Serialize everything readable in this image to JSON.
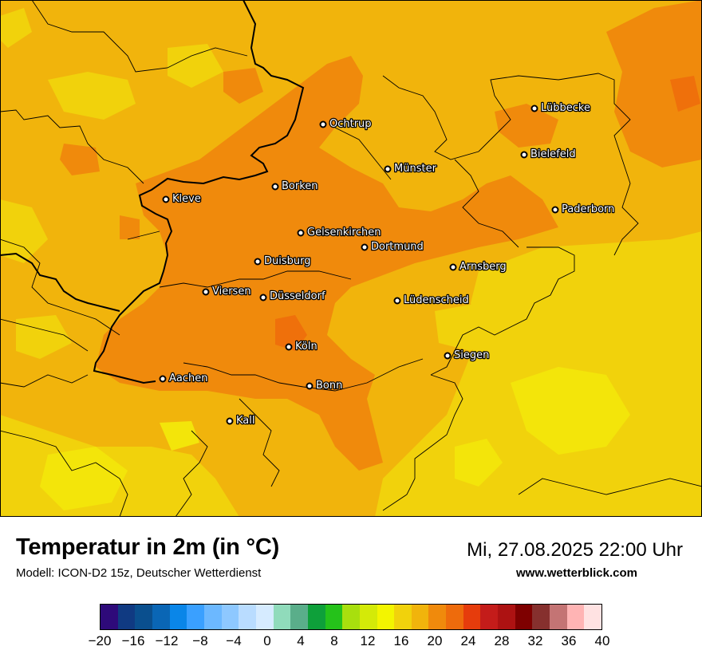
{
  "footer": {
    "title": "Temperatur in 2m (in °C)",
    "model": "Modell: ICON-D2 15z, Deutscher Wetterdienst",
    "datetime": "Mi, 27.08.2025 22:00 Uhr",
    "website": "www.wetterblick.com"
  },
  "legend": {
    "colors": [
      "#2e0a7a",
      "#103a82",
      "#0a4f8e",
      "#0a66b5",
      "#0a86e8",
      "#3aa0ff",
      "#6cb8ff",
      "#8ec8ff",
      "#b9dcff",
      "#d6ebff",
      "#90dbbb",
      "#5aae8a",
      "#0ea03a",
      "#25c21a",
      "#a8df0e",
      "#d4ea08",
      "#f3f500",
      "#f1d20c",
      "#f1b40c",
      "#f08a0c",
      "#ee6b0c",
      "#e63c0c",
      "#c41c1a",
      "#ad1212",
      "#7e0000",
      "#86302e",
      "#c47474",
      "#ffb4b4",
      "#ffe2e2"
    ],
    "ticks": [
      "−20",
      "−16",
      "−12",
      "−8",
      "−4",
      "0",
      "4",
      "8",
      "12",
      "16",
      "20",
      "24",
      "28",
      "32",
      "36",
      "40"
    ]
  },
  "cities": [
    {
      "name": "Ochtrup"
    },
    {
      "name": "Lübbecke"
    },
    {
      "name": "Bielefeld"
    },
    {
      "name": "Münster"
    },
    {
      "name": "Borken"
    },
    {
      "name": "Kleve"
    },
    {
      "name": "Paderborn"
    },
    {
      "name": "Gelsenkirchen"
    },
    {
      "name": "Dortmund"
    },
    {
      "name": "Duisburg"
    },
    {
      "name": "Arnsberg"
    },
    {
      "name": "Viersen"
    },
    {
      "name": "Düsseldorf"
    },
    {
      "name": "Lüdenscheid"
    },
    {
      "name": "Köln"
    },
    {
      "name": "Siegen"
    },
    {
      "name": "Aachen"
    },
    {
      "name": "Bonn"
    },
    {
      "name": "Kall"
    }
  ],
  "map_colors": {
    "base": "#f1b40c",
    "warm": "#f08a0c",
    "cool": "#f1d20c",
    "coolest": "#f3e50a"
  }
}
